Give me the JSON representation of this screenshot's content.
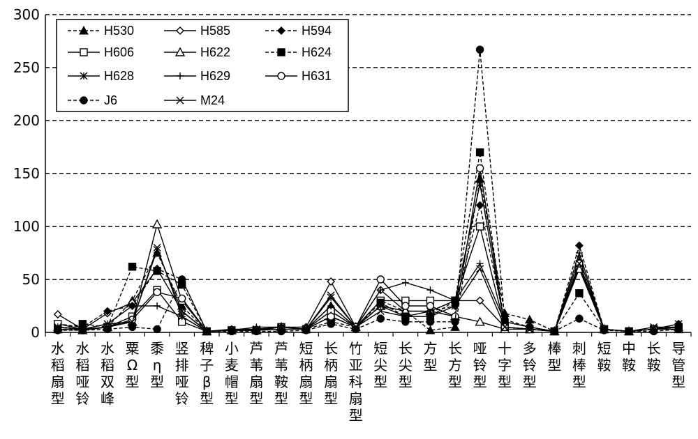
{
  "chart_data": {
    "type": "line",
    "title": "",
    "xlabel": "",
    "ylabel": "",
    "ylim": [
      0,
      300
    ],
    "yticks": [
      0,
      50,
      100,
      150,
      200,
      250,
      300
    ],
    "grid": "horizontal-dashed",
    "legend_position": "top-left",
    "categories": [
      "水稻扇型",
      "水稻哑铃",
      "水稻双峰",
      "粟Ω型",
      "黍η型",
      "竖排哑铃",
      "稗子β型",
      "小麦帽型",
      "芦苇扇型",
      "芦苇鞍型",
      "短柄扇型",
      "长柄扇型",
      "竹亚科扇型",
      "短尖型",
      "长尖型",
      "方型",
      "长方型",
      "哑铃型",
      "十字型",
      "多铃型",
      "棒型",
      "刺棒型",
      "短鞍",
      "中鞍",
      "长鞍",
      "导管型"
    ],
    "series": [
      {
        "name": "H530",
        "dash": "dashed",
        "marker": "triangle-filled",
        "values": [
          5,
          2,
          5,
          30,
          75,
          25,
          1,
          2,
          3,
          5,
          3,
          25,
          5,
          25,
          20,
          2,
          5,
          145,
          18,
          12,
          1,
          65,
          3,
          1,
          3,
          5
        ]
      },
      {
        "name": "H585",
        "dash": "solid",
        "marker": "diamond-open",
        "values": [
          17,
          3,
          18,
          28,
          60,
          20,
          1,
          3,
          3,
          5,
          5,
          48,
          5,
          40,
          20,
          20,
          30,
          30,
          5,
          3,
          1,
          60,
          3,
          1,
          3,
          5
        ]
      },
      {
        "name": "H594",
        "dash": "dashed",
        "marker": "diamond-filled",
        "values": [
          8,
          5,
          20,
          25,
          60,
          50,
          1,
          2,
          2,
          5,
          3,
          20,
          5,
          30,
          20,
          20,
          25,
          120,
          10,
          5,
          1,
          82,
          3,
          1,
          3,
          8
        ]
      },
      {
        "name": "H606",
        "dash": "solid",
        "marker": "square-open",
        "values": [
          8,
          3,
          5,
          15,
          40,
          10,
          1,
          2,
          2,
          5,
          3,
          20,
          5,
          30,
          30,
          30,
          30,
          100,
          5,
          3,
          1,
          62,
          3,
          1,
          3,
          5
        ]
      },
      {
        "name": "H622",
        "dash": "solid",
        "marker": "triangle-open",
        "values": [
          3,
          2,
          5,
          10,
          102,
          30,
          1,
          2,
          2,
          5,
          3,
          15,
          5,
          25,
          20,
          20,
          15,
          10,
          3,
          3,
          1,
          60,
          3,
          1,
          3,
          3
        ]
      },
      {
        "name": "H624",
        "dash": "dashed",
        "marker": "square-filled",
        "values": [
          3,
          8,
          5,
          62,
          58,
          45,
          1,
          2,
          2,
          3,
          3,
          10,
          5,
          28,
          15,
          15,
          30,
          170,
          5,
          3,
          1,
          37,
          3,
          1,
          3,
          5
        ]
      },
      {
        "name": "H628",
        "dash": "solid",
        "marker": "asterisk",
        "values": [
          5,
          3,
          5,
          10,
          78,
          20,
          1,
          2,
          2,
          5,
          3,
          33,
          5,
          25,
          15,
          20,
          30,
          140,
          5,
          3,
          1,
          70,
          3,
          1,
          3,
          8
        ]
      },
      {
        "name": "H629",
        "dash": "solid",
        "marker": "plus",
        "values": [
          5,
          3,
          8,
          25,
          25,
          15,
          1,
          2,
          5,
          5,
          3,
          25,
          5,
          40,
          47,
          40,
          30,
          65,
          10,
          5,
          1,
          75,
          3,
          1,
          3,
          5
        ]
      },
      {
        "name": "H631",
        "dash": "solid",
        "marker": "circle-open",
        "values": [
          3,
          2,
          5,
          12,
          38,
          32,
          1,
          2,
          2,
          3,
          3,
          15,
          5,
          50,
          25,
          25,
          15,
          155,
          5,
          3,
          1,
          65,
          3,
          1,
          3,
          3
        ]
      },
      {
        "name": "J6",
        "dash": "dashed",
        "marker": "circle-filled",
        "values": [
          2,
          2,
          3,
          5,
          3,
          50,
          1,
          1,
          1,
          1,
          2,
          8,
          3,
          13,
          10,
          10,
          10,
          267,
          12,
          5,
          1,
          13,
          2,
          1,
          1,
          3
        ]
      },
      {
        "name": "M24",
        "dash": "solid",
        "marker": "x",
        "values": [
          5,
          3,
          8,
          10,
          80,
          15,
          1,
          2,
          3,
          5,
          3,
          35,
          5,
          20,
          15,
          15,
          25,
          60,
          5,
          3,
          1,
          65,
          3,
          1,
          5,
          5
        ]
      }
    ]
  }
}
